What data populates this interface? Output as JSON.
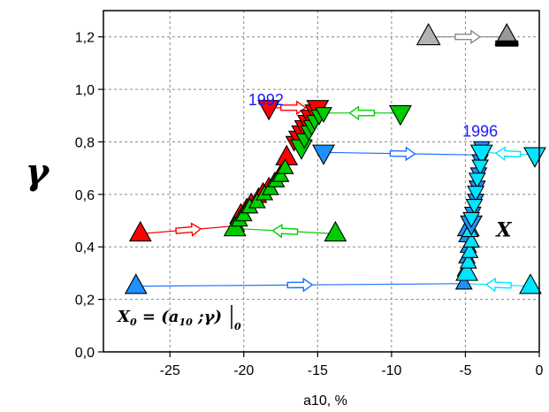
{
  "chart_data": {
    "type": "scatter",
    "title": "",
    "xlabel": "a10, %",
    "ylabel": "γ",
    "xlim": [
      -29.5,
      0
    ],
    "ylim": [
      0,
      1.3
    ],
    "grid": true,
    "x_ticks": [
      -25,
      -20,
      -15,
      -10,
      -5,
      0
    ],
    "y_ticks": [
      0.0,
      0.2,
      0.4,
      0.6,
      0.8,
      1.0,
      1.2
    ],
    "x_tick_labels": [
      "-25",
      "-20",
      "-15",
      "-10",
      "-5",
      "0"
    ],
    "y_tick_labels": [
      "0,0",
      "0,2",
      "0,4",
      "0,6",
      "0,8",
      "1,0",
      "1,2"
    ],
    "annotations": [
      {
        "text": "1992",
        "x": -18.5,
        "y": 0.94,
        "color": "#1a1aff"
      },
      {
        "text": "1996",
        "x": -4.0,
        "y": 0.82,
        "color": "#1a1aff"
      },
      {
        "text": "X",
        "x": -2.4,
        "y": 0.44,
        "color": "#000000"
      }
    ],
    "formula": {
      "X": "X",
      "sub0": "0",
      "eq": " = (",
      "a": "a",
      "sub10": "10",
      "rest": " ;γ)"
    },
    "legend_glyph": {
      "from": [
        -7.5,
        1.2
      ],
      "to": [
        -2.2,
        1.2
      ],
      "start_color": "#b4b4b4",
      "end_color": "#999999"
    },
    "series": [
      {
        "group": "1992",
        "marker": "up",
        "color": "#ff0000",
        "points": [
          [
            -27.0,
            0.45
          ],
          [
            -20.5,
            0.48
          ],
          [
            -20.4,
            0.51
          ],
          [
            -20.2,
            0.53
          ],
          [
            -19.8,
            0.55
          ],
          [
            -19.5,
            0.57
          ],
          [
            -19.0,
            0.59
          ],
          [
            -18.7,
            0.61
          ],
          [
            -18.3,
            0.63
          ],
          [
            -17.9,
            0.65
          ],
          [
            -17.6,
            0.67
          ],
          [
            -17.3,
            0.7
          ],
          [
            -17.1,
            0.74
          ]
        ]
      },
      {
        "group": "1992",
        "marker": "up",
        "color": "#00cc00",
        "points": [
          [
            -20.6,
            0.47
          ],
          [
            -20.3,
            0.5
          ],
          [
            -20.0,
            0.52
          ],
          [
            -19.6,
            0.55
          ],
          [
            -19.1,
            0.57
          ],
          [
            -18.6,
            0.6
          ],
          [
            -18.2,
            0.62
          ],
          [
            -17.8,
            0.65
          ],
          [
            -17.5,
            0.67
          ],
          [
            -17.2,
            0.7
          ],
          [
            -13.8,
            0.45
          ]
        ]
      },
      {
        "group": "1992",
        "marker": "down",
        "color": "#ff0000",
        "points": [
          [
            -18.3,
            0.93
          ],
          [
            -16.6,
            0.8
          ],
          [
            -16.4,
            0.82
          ],
          [
            -16.2,
            0.84
          ],
          [
            -16.0,
            0.86
          ],
          [
            -15.8,
            0.88
          ],
          [
            -15.6,
            0.9
          ],
          [
            -15.3,
            0.92
          ],
          [
            -15.0,
            0.93
          ]
        ]
      },
      {
        "group": "1992",
        "marker": "down",
        "color": "#00cc00",
        "points": [
          [
            -16.1,
            0.78
          ],
          [
            -15.9,
            0.81
          ],
          [
            -15.6,
            0.84
          ],
          [
            -15.4,
            0.86
          ],
          [
            -15.2,
            0.88
          ],
          [
            -14.9,
            0.9
          ],
          [
            -14.6,
            0.91
          ],
          [
            -9.4,
            0.91
          ]
        ]
      },
      {
        "group": "1996",
        "marker": "up",
        "color": "#1e90ff",
        "points": [
          [
            -27.3,
            0.25
          ],
          [
            -5.1,
            0.26
          ],
          [
            -5.0,
            0.31
          ],
          [
            -4.9,
            0.36
          ],
          [
            -4.8,
            0.4
          ],
          [
            -4.9,
            0.44
          ],
          [
            -4.8,
            0.47
          ]
        ]
      },
      {
        "group": "1996",
        "marker": "up",
        "color": "#00e5ff",
        "points": [
          [
            -4.9,
            0.3
          ],
          [
            -4.8,
            0.34
          ],
          [
            -4.7,
            0.38
          ],
          [
            -4.6,
            0.42
          ],
          [
            -4.7,
            0.46
          ],
          [
            -0.6,
            0.25
          ]
        ]
      },
      {
        "group": "1996",
        "marker": "down",
        "color": "#1e90ff",
        "points": [
          [
            -14.6,
            0.76
          ],
          [
            -3.9,
            0.78
          ],
          [
            -4.0,
            0.73
          ],
          [
            -4.1,
            0.68
          ],
          [
            -4.2,
            0.63
          ],
          [
            -4.3,
            0.58
          ],
          [
            -4.5,
            0.53
          ],
          [
            -4.6,
            0.49
          ]
        ]
      },
      {
        "group": "1996",
        "marker": "down",
        "color": "#00e5ff",
        "points": [
          [
            -3.9,
            0.76
          ],
          [
            -4.0,
            0.71
          ],
          [
            -4.2,
            0.66
          ],
          [
            -4.3,
            0.61
          ],
          [
            -4.4,
            0.56
          ],
          [
            -4.6,
            0.51
          ],
          [
            -0.3,
            0.75
          ]
        ]
      }
    ],
    "trajectories": [
      {
        "from": [
          -27.0,
          0.45
        ],
        "to": [
          -20.5,
          0.48
        ],
        "color": "#ff0000"
      },
      {
        "from": [
          -13.8,
          0.45
        ],
        "to": [
          -20.6,
          0.47
        ],
        "color": "#00cc00"
      },
      {
        "from": [
          -18.3,
          0.93
        ],
        "to": [
          -15.0,
          0.93
        ],
        "color": "#ff0000"
      },
      {
        "from": [
          -9.4,
          0.91
        ],
        "to": [
          -14.6,
          0.91
        ],
        "color": "#00cc00"
      },
      {
        "from": [
          -14.6,
          0.76
        ],
        "to": [
          -3.9,
          0.75
        ],
        "color": "#1e6fff"
      },
      {
        "from": [
          -0.3,
          0.75
        ],
        "to": [
          -3.9,
          0.76
        ],
        "color": "#00e5ff"
      },
      {
        "from": [
          -27.3,
          0.25
        ],
        "to": [
          -5.1,
          0.26
        ],
        "color": "#1e6fff"
      },
      {
        "from": [
          -0.6,
          0.25
        ],
        "to": [
          -4.9,
          0.26
        ],
        "color": "#00e5ff"
      }
    ]
  }
}
